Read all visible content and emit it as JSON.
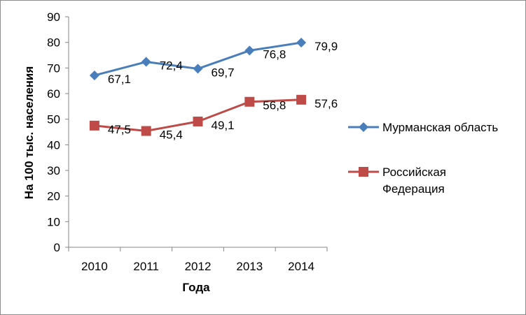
{
  "chart_data": {
    "type": "line",
    "title": "",
    "xlabel": "Года",
    "ylabel": "На 100 тыс. населения",
    "categories": [
      "2010",
      "2011",
      "2012",
      "2013",
      "2014"
    ],
    "ylim": [
      0,
      90
    ],
    "yticks": [
      "0",
      "10",
      "20",
      "30",
      "40",
      "50",
      "60",
      "70",
      "80",
      "90"
    ],
    "grid": false,
    "legend_position": "right",
    "series": [
      {
        "name": "Мурманская область",
        "values": [
          67.1,
          72.4,
          69.7,
          76.8,
          79.9
        ],
        "labels": [
          "67,1",
          "72,4",
          "69,7",
          "76,8",
          "79,9"
        ],
        "color": "#4a7ebb",
        "marker": "diamond"
      },
      {
        "name_lines": [
          "Российская",
          "Федерация"
        ],
        "values": [
          47.5,
          45.4,
          49.1,
          56.8,
          57.6
        ],
        "labels": [
          "47,5",
          "45,4",
          "49,1",
          "56,8",
          "57,6"
        ],
        "color": "#be4b48",
        "marker": "square"
      }
    ]
  }
}
